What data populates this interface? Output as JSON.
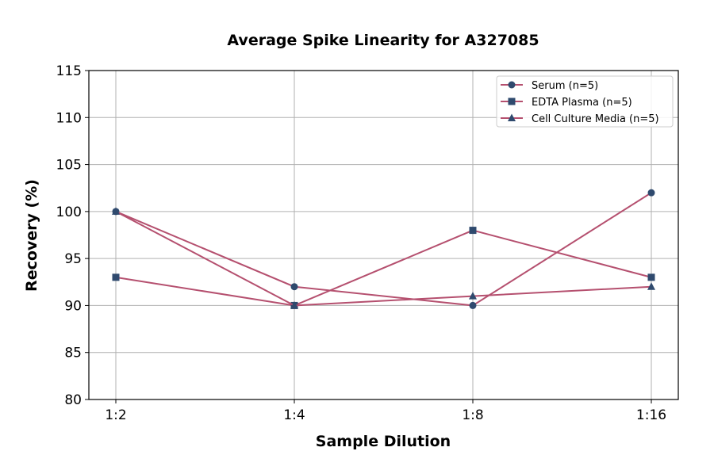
{
  "chart_data": {
    "type": "line",
    "title": "Average Spike Linearity for A327085",
    "xlabel": "Sample Dilution",
    "ylabel": "Recovery (%)",
    "categories": [
      "1:2",
      "1:4",
      "1:8",
      "1:16"
    ],
    "ylim": [
      80,
      115
    ],
    "yticks": [
      80,
      85,
      90,
      95,
      100,
      105,
      110,
      115
    ],
    "grid": true,
    "legend_position": "top-right",
    "line_color": "#b5506f",
    "marker_color": "#2f4a6e",
    "series": [
      {
        "name": "Serum (n=5)",
        "marker": "circle",
        "values": [
          100,
          92,
          90,
          102
        ]
      },
      {
        "name": "EDTA Plasma (n=5)",
        "marker": "square",
        "values": [
          93,
          90,
          98,
          93
        ]
      },
      {
        "name": "Cell Culture Media (n=5)",
        "marker": "triangle",
        "values": [
          100,
          90,
          91,
          92
        ]
      }
    ]
  }
}
